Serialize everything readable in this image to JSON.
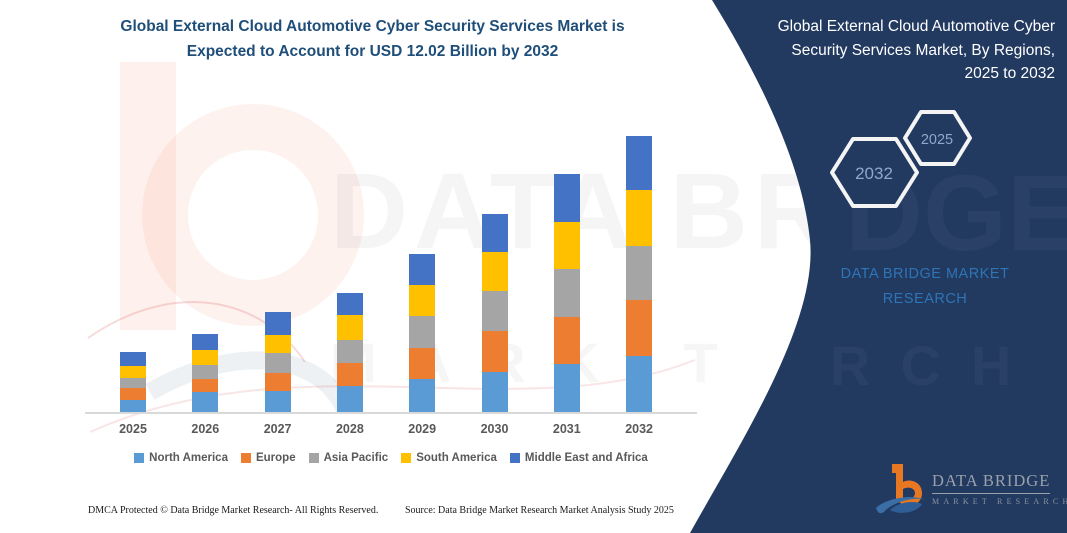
{
  "left": {
    "title_line1": "Global External Cloud Automotive Cyber Security Services Market is",
    "title_line2": "Expected to Account for USD 12.02 Billion by 2032",
    "title_color": "#1F4E79"
  },
  "chart_data": {
    "type": "bar",
    "stacked": true,
    "title": "Global External Cloud Automotive Cyber Security Services Market is Expected to Account for USD 12.02 Billion by 2032",
    "unit": "USD Billion",
    "categories": [
      "2025",
      "2026",
      "2027",
      "2028",
      "2029",
      "2030",
      "2031",
      "2032"
    ],
    "series": [
      {
        "name": "North America",
        "color": "#5B9BD5",
        "values": [
          0.52,
          0.87,
          0.91,
          1.13,
          1.42,
          1.74,
          2.07,
          2.43
        ]
      },
      {
        "name": "Europe",
        "color": "#ED7D31",
        "values": [
          0.52,
          0.58,
          0.79,
          1.01,
          1.35,
          1.78,
          2.07,
          2.43
        ]
      },
      {
        "name": "Asia Pacific",
        "color": "#A5A5A5",
        "values": [
          0.46,
          0.58,
          0.87,
          0.98,
          1.4,
          1.74,
          2.08,
          2.37
        ]
      },
      {
        "name": "South America",
        "color": "#FFC000",
        "values": [
          0.52,
          0.65,
          0.79,
          1.08,
          1.36,
          1.69,
          2.03,
          2.43
        ]
      },
      {
        "name": "Middle East and Africa",
        "color": "#4472C4",
        "values": [
          0.58,
          0.72,
          0.97,
          0.97,
          1.36,
          1.68,
          2.11,
          2.36
        ]
      }
    ],
    "totals": [
      2.6,
      3.4,
      4.33,
      5.17,
      6.89,
      8.63,
      10.36,
      12.02
    ],
    "ylim": [
      0,
      12.02
    ],
    "grid": false,
    "legend_position": "bottom"
  },
  "footer": {
    "dmca": "DMCA Protected © Data Bridge Market Research-  All Rights Reserved.",
    "source": "Source: Data Bridge Market Research  Market Analysis Study 2025"
  },
  "right_panel": {
    "bg_color": "#223960",
    "title": "Global External Cloud Automotive Cyber Security Services Market, By Regions, 2025 to 2032",
    "hexagon_back_label": "2032",
    "hexagon_front_label": "2025",
    "brand_line1": "DATA BRIDGE MARKET",
    "brand_line2": "RESEARCH",
    "brand_color": "#2E75B6",
    "logo_name": "DATA BRIDGE",
    "logo_sub": "MARKET RESEARCH"
  },
  "watermark": {
    "line1": "DATA BRI",
    "line2": "MARK T"
  }
}
